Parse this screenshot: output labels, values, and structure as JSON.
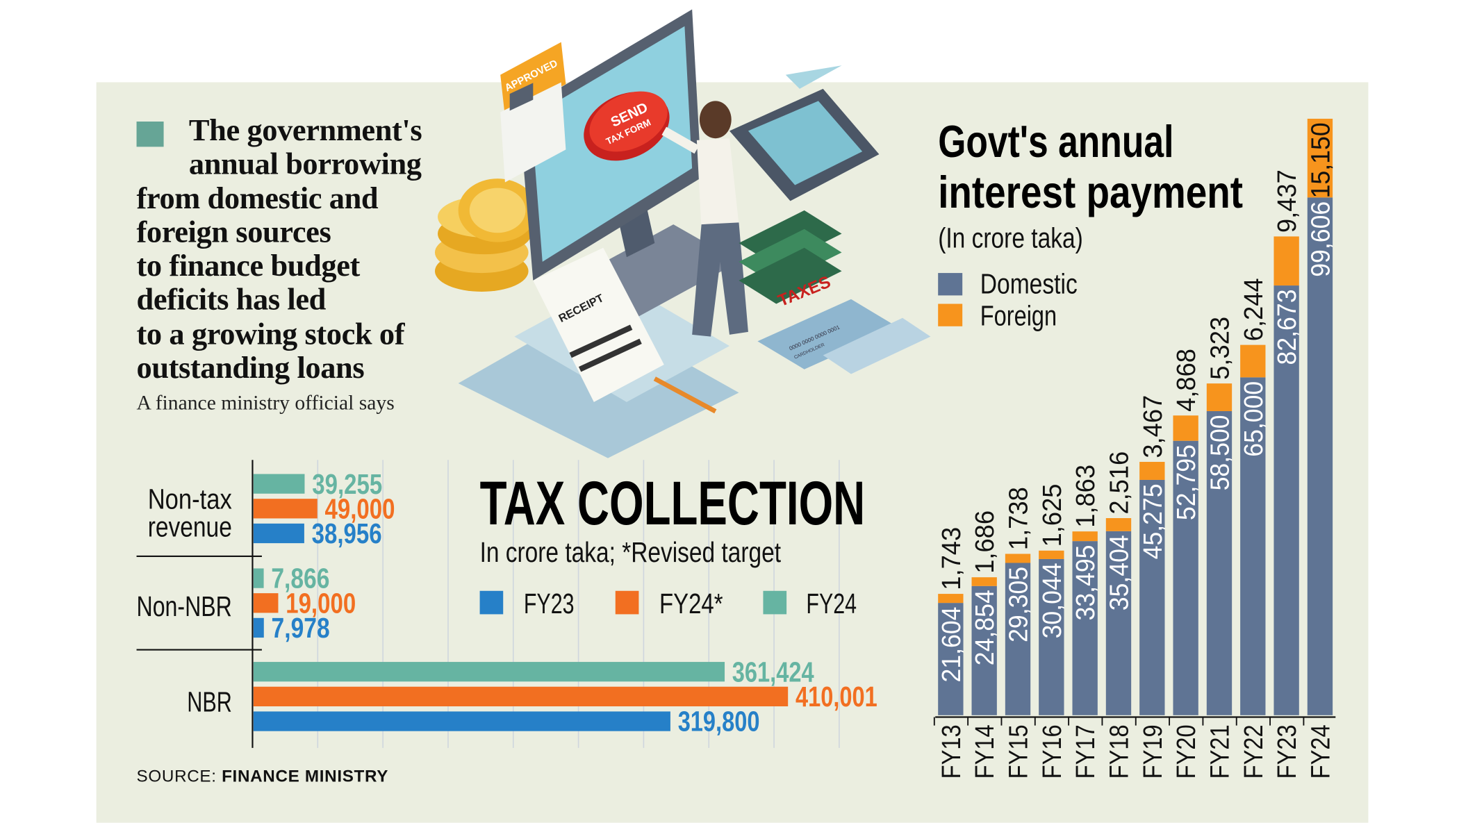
{
  "quote": {
    "lines": [
      "The government's",
      "annual borrowing",
      "from domestic and",
      "foreign sources",
      "to finance budget",
      "deficits has led",
      "to a growing stock of",
      "outstanding loans"
    ],
    "attribution": "A finance ministry official says",
    "accent_color": "#66a596"
  },
  "illustration": {
    "approved_label": "APPROVED",
    "send_button_label": "SEND",
    "send_button_sub": "TAX FORM",
    "receipt_label": "RECEIPT",
    "taxes_label": "TAXES",
    "card_number": "0000 0000 0000 0001",
    "card_holder": "CARDHOLDER"
  },
  "source": {
    "prefix": "SOURCE:",
    "name": "FINANCE MINISTRY"
  },
  "chart_data": [
    {
      "type": "bar",
      "orientation": "horizontal",
      "title": "TAX COLLECTION",
      "subtitle": "In crore taka; *Revised target",
      "categories": [
        "Non-tax revenue",
        "Non-NBR",
        "NBR"
      ],
      "category_lines": [
        [
          "Non-tax",
          "revenue"
        ],
        [
          "Non-NBR"
        ],
        [
          "NBR"
        ]
      ],
      "series": [
        {
          "name": "FY24",
          "color": "#66b4a2",
          "values": [
            39255,
            7866,
            361424
          ],
          "labels": [
            "39,255",
            "7,866",
            "361,424"
          ]
        },
        {
          "name": "FY24*",
          "color": "#f26f21",
          "values": [
            49000,
            19000,
            410001
          ],
          "labels": [
            "49,000",
            "19,000",
            "410,001"
          ]
        },
        {
          "name": "FY23",
          "color": "#2680c8",
          "values": [
            38956,
            7978,
            319800
          ],
          "labels": [
            "38,956",
            "7,978",
            "319,800"
          ]
        }
      ],
      "legend": [
        "FY23",
        "FY24*",
        "FY24"
      ],
      "legend_colors": [
        "#2680c8",
        "#f26f21",
        "#66b4a2"
      ],
      "xlim": [
        0,
        450000
      ],
      "grid_step": 50000,
      "grid": true,
      "legend_placement": "right"
    },
    {
      "type": "bar",
      "stacked": true,
      "title_lines": [
        "Govt's annual",
        "interest payment"
      ],
      "subtitle": "(In crore taka)",
      "categories": [
        "FY13",
        "FY14",
        "FY15",
        "FY16",
        "FY17",
        "FY18",
        "FY19",
        "FY20",
        "FY21",
        "FY22",
        "FY23",
        "FY24"
      ],
      "series": [
        {
          "name": "Domestic",
          "color": "#5f7494",
          "values": [
            21604,
            24854,
            29305,
            30044,
            33495,
            35404,
            45275,
            52795,
            58500,
            65000,
            82673,
            99606
          ],
          "labels": [
            "21,604",
            "24,854",
            "29,305",
            "30,044",
            "33,495",
            "35,404",
            "45,275",
            "52,795",
            "58,500",
            "65,000",
            "82,673",
            "99,606"
          ]
        },
        {
          "name": "Foreign",
          "color": "#f7941d",
          "values": [
            1743,
            1686,
            1738,
            1625,
            1863,
            2516,
            3467,
            4868,
            5323,
            6244,
            9437,
            15150
          ],
          "labels": [
            "1,743",
            "1,686",
            "1,738",
            "1,625",
            "1,863",
            "2,516",
            "3,467",
            "4,868",
            "5,323",
            "6,244",
            "9,437",
            "15,150"
          ]
        }
      ],
      "ylim": [
        0,
        115000
      ],
      "grid": false,
      "legend_placement": "top-left"
    }
  ]
}
